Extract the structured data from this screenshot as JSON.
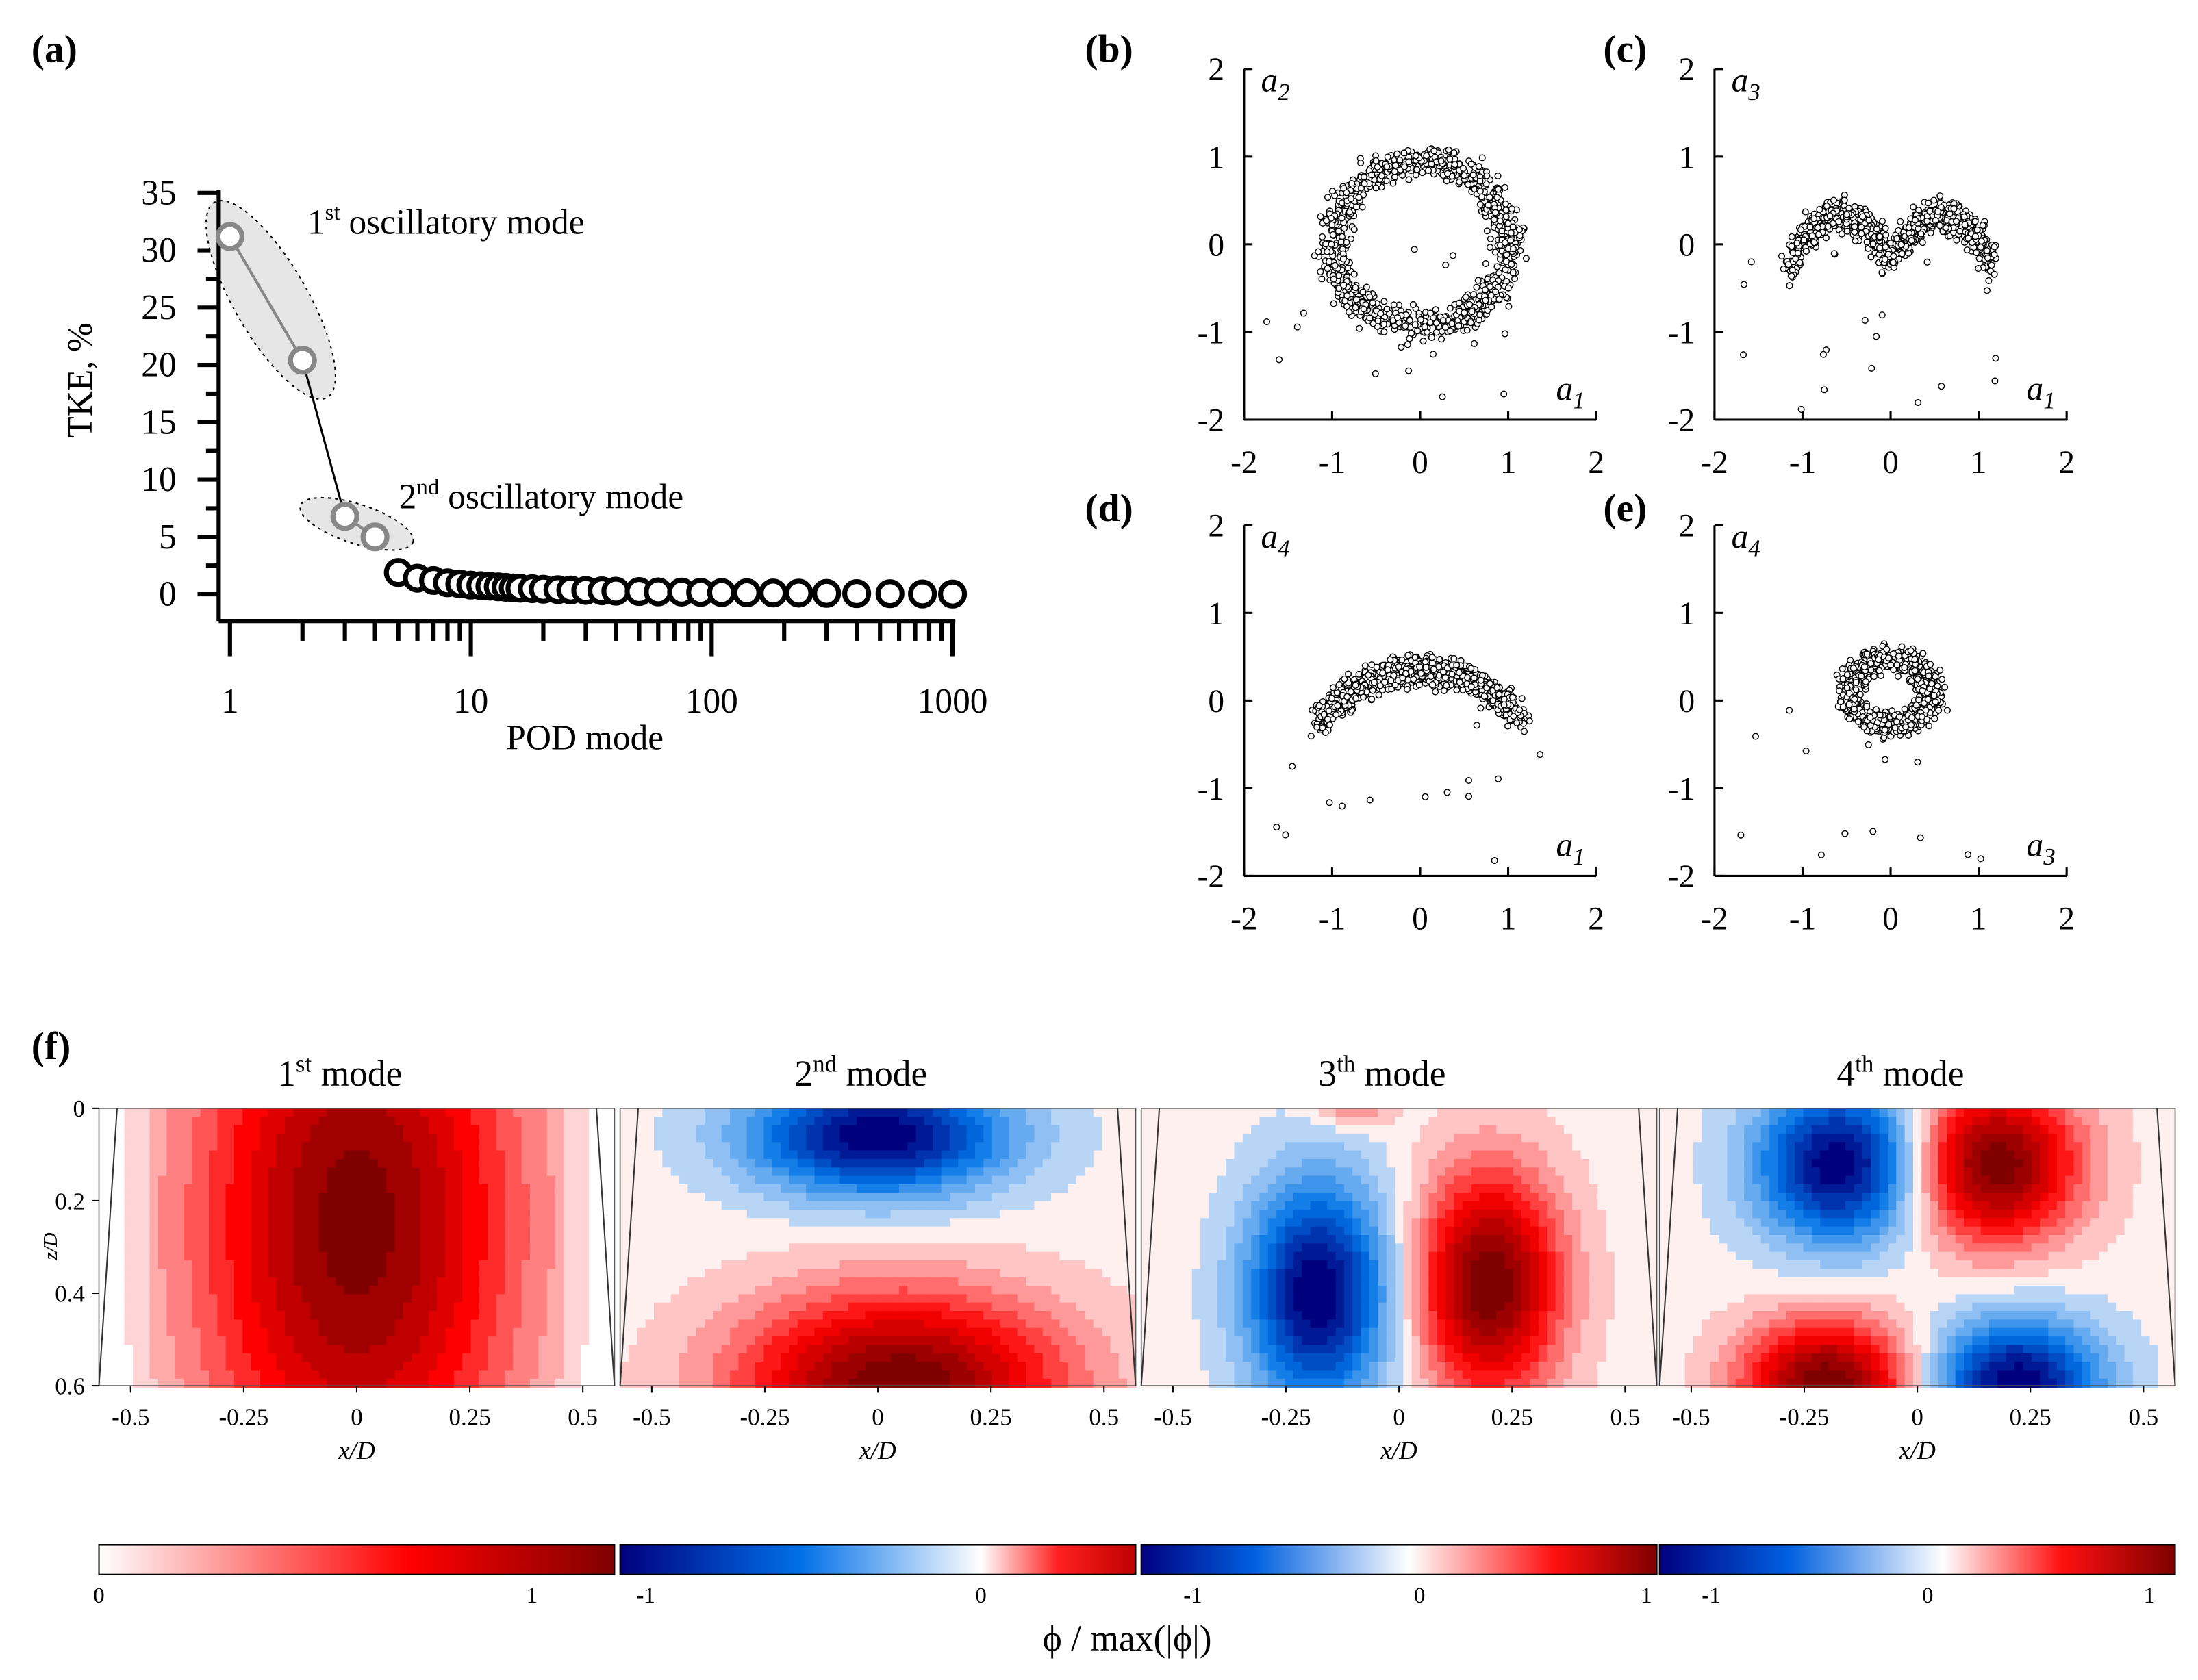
{
  "panel_letters": {
    "a": "(a)",
    "b": "(b)",
    "c": "(c)",
    "d": "(d)",
    "e": "(e)",
    "f": "(f)"
  },
  "chart_data": [
    {
      "id": "a",
      "type": "scatter",
      "xscale": "log",
      "xlabel": "POD mode",
      "ylabel": "TKE, %",
      "xlim": [
        1,
        1000
      ],
      "ylim": [
        0,
        35
      ],
      "xticks": [
        1,
        10,
        100,
        1000
      ],
      "xtick_labels": [
        "1",
        "10",
        "100",
        "1000"
      ],
      "yticks": [
        0,
        5,
        10,
        15,
        20,
        25,
        30,
        35
      ],
      "ytick_labels": [
        "0",
        "5",
        "10",
        "15",
        "20",
        "25",
        "30",
        "35"
      ],
      "highlighted_modes": [
        {
          "mode": 1,
          "tke": 31.2
        },
        {
          "mode": 2,
          "tke": 20.4
        },
        {
          "mode": 3,
          "tke": 6.8
        },
        {
          "mode": 4,
          "tke": 5.0
        }
      ],
      "tail_modes": [
        {
          "mode": 5,
          "tke": 1.9
        },
        {
          "mode": 6,
          "tke": 1.4
        },
        {
          "mode": 7,
          "tke": 1.2
        },
        {
          "mode": 8,
          "tke": 1.0
        },
        {
          "mode": 9,
          "tke": 0.9
        },
        {
          "mode": 10,
          "tke": 0.8
        },
        {
          "mode": 11,
          "tke": 0.75
        },
        {
          "mode": 12,
          "tke": 0.7
        },
        {
          "mode": 13,
          "tke": 0.65
        },
        {
          "mode": 14,
          "tke": 0.6
        },
        {
          "mode": 15,
          "tke": 0.55
        },
        {
          "mode": 16,
          "tke": 0.52
        },
        {
          "mode": 18,
          "tke": 0.48
        },
        {
          "mode": 20,
          "tke": 0.44
        },
        {
          "mode": 23,
          "tke": 0.4
        },
        {
          "mode": 26,
          "tke": 0.37
        },
        {
          "mode": 30,
          "tke": 0.33
        },
        {
          "mode": 35,
          "tke": 0.3
        },
        {
          "mode": 40,
          "tke": 0.27
        },
        {
          "mode": 50,
          "tke": 0.24
        },
        {
          "mode": 60,
          "tke": 0.21
        },
        {
          "mode": 75,
          "tke": 0.19
        },
        {
          "mode": 90,
          "tke": 0.17
        },
        {
          "mode": 110,
          "tke": 0.15
        },
        {
          "mode": 140,
          "tke": 0.13
        },
        {
          "mode": 180,
          "tke": 0.11
        },
        {
          "mode": 230,
          "tke": 0.1
        },
        {
          "mode": 300,
          "tke": 0.08
        },
        {
          "mode": 400,
          "tke": 0.06
        },
        {
          "mode": 550,
          "tke": 0.05
        },
        {
          "mode": 750,
          "tke": 0.03
        },
        {
          "mode": 1000,
          "tke": 0.02
        }
      ],
      "annotations": [
        {
          "sup": "st",
          "prefix": "1",
          "text": " oscillatory mode"
        },
        {
          "sup": "nd",
          "prefix": "2",
          "text": " oscillatory mode"
        }
      ]
    },
    {
      "id": "b",
      "type": "scatter",
      "xlim": [
        -2,
        2
      ],
      "ylim": [
        -2,
        2
      ],
      "xvar": "a",
      "xsub": "1",
      "yvar": "a",
      "ysub": "2",
      "pattern": "ring",
      "center": [
        0,
        0
      ],
      "radius": 1.0,
      "spread": 0.18,
      "n_points": 1000,
      "ticks": [
        -2,
        -1,
        0,
        1,
        2
      ],
      "tick_labels": [
        "-2",
        "-1",
        "0",
        "1",
        "2"
      ]
    },
    {
      "id": "c",
      "type": "scatter",
      "xlim": [
        -2,
        2
      ],
      "ylim": [
        -2,
        2
      ],
      "xvar": "a",
      "xsub": "1",
      "yvar": "a",
      "ysub": "3",
      "pattern": "double_arch",
      "center": [
        0,
        0
      ],
      "radius": 1.0,
      "spread": 0.17,
      "n_points": 1000,
      "ticks": [
        -2,
        -1,
        0,
        1,
        2
      ],
      "tick_labels": [
        "-2",
        "-1",
        "0",
        "1",
        "2"
      ]
    },
    {
      "id": "d",
      "type": "scatter",
      "xlim": [
        -2,
        2
      ],
      "ylim": [
        -2,
        2
      ],
      "xvar": "a",
      "xsub": "1",
      "yvar": "a",
      "ysub": "4",
      "pattern": "arch",
      "center": [
        0,
        0
      ],
      "radius": 1.0,
      "spread": 0.17,
      "n_points": 1000,
      "ticks": [
        -2,
        -1,
        0,
        1,
        2
      ],
      "tick_labels": [
        "-2",
        "-1",
        "0",
        "1",
        "2"
      ]
    },
    {
      "id": "e",
      "type": "scatter",
      "xlim": [
        -2,
        2
      ],
      "ylim": [
        -2,
        2
      ],
      "xvar": "a",
      "xsub": "3",
      "yvar": "a",
      "ysub": "4",
      "pattern": "small_ring",
      "center": [
        0,
        0.1
      ],
      "radius": 0.45,
      "spread": 0.15,
      "n_points": 900,
      "ticks": [
        -2,
        -1,
        0,
        1,
        2
      ],
      "tick_labels": [
        "-2",
        "-1",
        "0",
        "1",
        "2"
      ]
    },
    {
      "id": "f",
      "type": "heatmap",
      "xlabel": "x/D",
      "ylabel": "z/D",
      "xlim": [
        -0.57,
        0.57
      ],
      "zlim": [
        0,
        0.6
      ],
      "xticks": [
        -0.5,
        -0.25,
        0,
        0.25,
        0.5
      ],
      "xtick_labels": [
        "-0.5",
        "-0.25",
        "0",
        "0.25",
        "0.5"
      ],
      "zticks": [
        0,
        0.2,
        0.4,
        0.6
      ],
      "ztick_labels": [
        "0",
        "0.2",
        "0.4",
        "0.6"
      ],
      "colorbar_label": "ϕ / max(|ϕ|)",
      "modes": [
        {
          "num": "1",
          "sup": "st",
          "word": " mode",
          "cbar_ticks": [
            0,
            1
          ],
          "cbar_labels": [
            "0",
            "1"
          ],
          "cmap": "white-red",
          "blobs": [
            {
              "x": 0.0,
              "z": 0.25,
              "amp": 1.0,
              "sx": 0.26,
              "sz": 0.48
            }
          ]
        },
        {
          "num": "2",
          "sup": "nd",
          "word": " mode",
          "cbar_ticks": [
            -1,
            0
          ],
          "cbar_labels": [
            "-1",
            "0"
          ],
          "cmap": "blue-white-red",
          "blobs": [
            {
              "x": 0.0,
              "z": 0.06,
              "amp": -1.0,
              "sx": 0.2,
              "sz": 0.09
            },
            {
              "x": 0.05,
              "z": 0.6,
              "amp": 1.0,
              "sx": 0.25,
              "sz": 0.14
            }
          ]
        },
        {
          "num": "3",
          "sup": "th",
          "word": " mode",
          "cbar_ticks": [
            -1,
            0,
            1
          ],
          "cbar_labels": [
            "-1",
            "0",
            "1"
          ],
          "cmap": "blue-white-red",
          "blobs": [
            {
              "x": -0.18,
              "z": 0.4,
              "amp": -1.0,
              "sx": 0.11,
              "sz": 0.17
            },
            {
              "x": 0.2,
              "z": 0.38,
              "amp": 1.0,
              "sx": 0.11,
              "sz": 0.17
            },
            {
              "x": -0.1,
              "z": 0.0,
              "amp": 0.25,
              "sx": 0.06,
              "sz": 0.03
            }
          ]
        },
        {
          "num": "4",
          "sup": "th",
          "word": " mode",
          "cbar_ticks": [
            -1,
            0,
            1
          ],
          "cbar_labels": [
            "-1",
            "0",
            "1"
          ],
          "cmap": "blue-white-red",
          "blobs": [
            {
              "x": -0.17,
              "z": 0.12,
              "amp": -1.0,
              "sx": 0.13,
              "sz": 0.12
            },
            {
              "x": 0.17,
              "z": 0.12,
              "amp": 1.0,
              "sx": 0.13,
              "sz": 0.12
            },
            {
              "x": -0.2,
              "z": 0.6,
              "amp": 1.0,
              "sx": 0.13,
              "sz": 0.1
            },
            {
              "x": 0.22,
              "z": 0.6,
              "amp": -1.0,
              "sx": 0.13,
              "sz": 0.1
            }
          ]
        }
      ]
    }
  ]
}
